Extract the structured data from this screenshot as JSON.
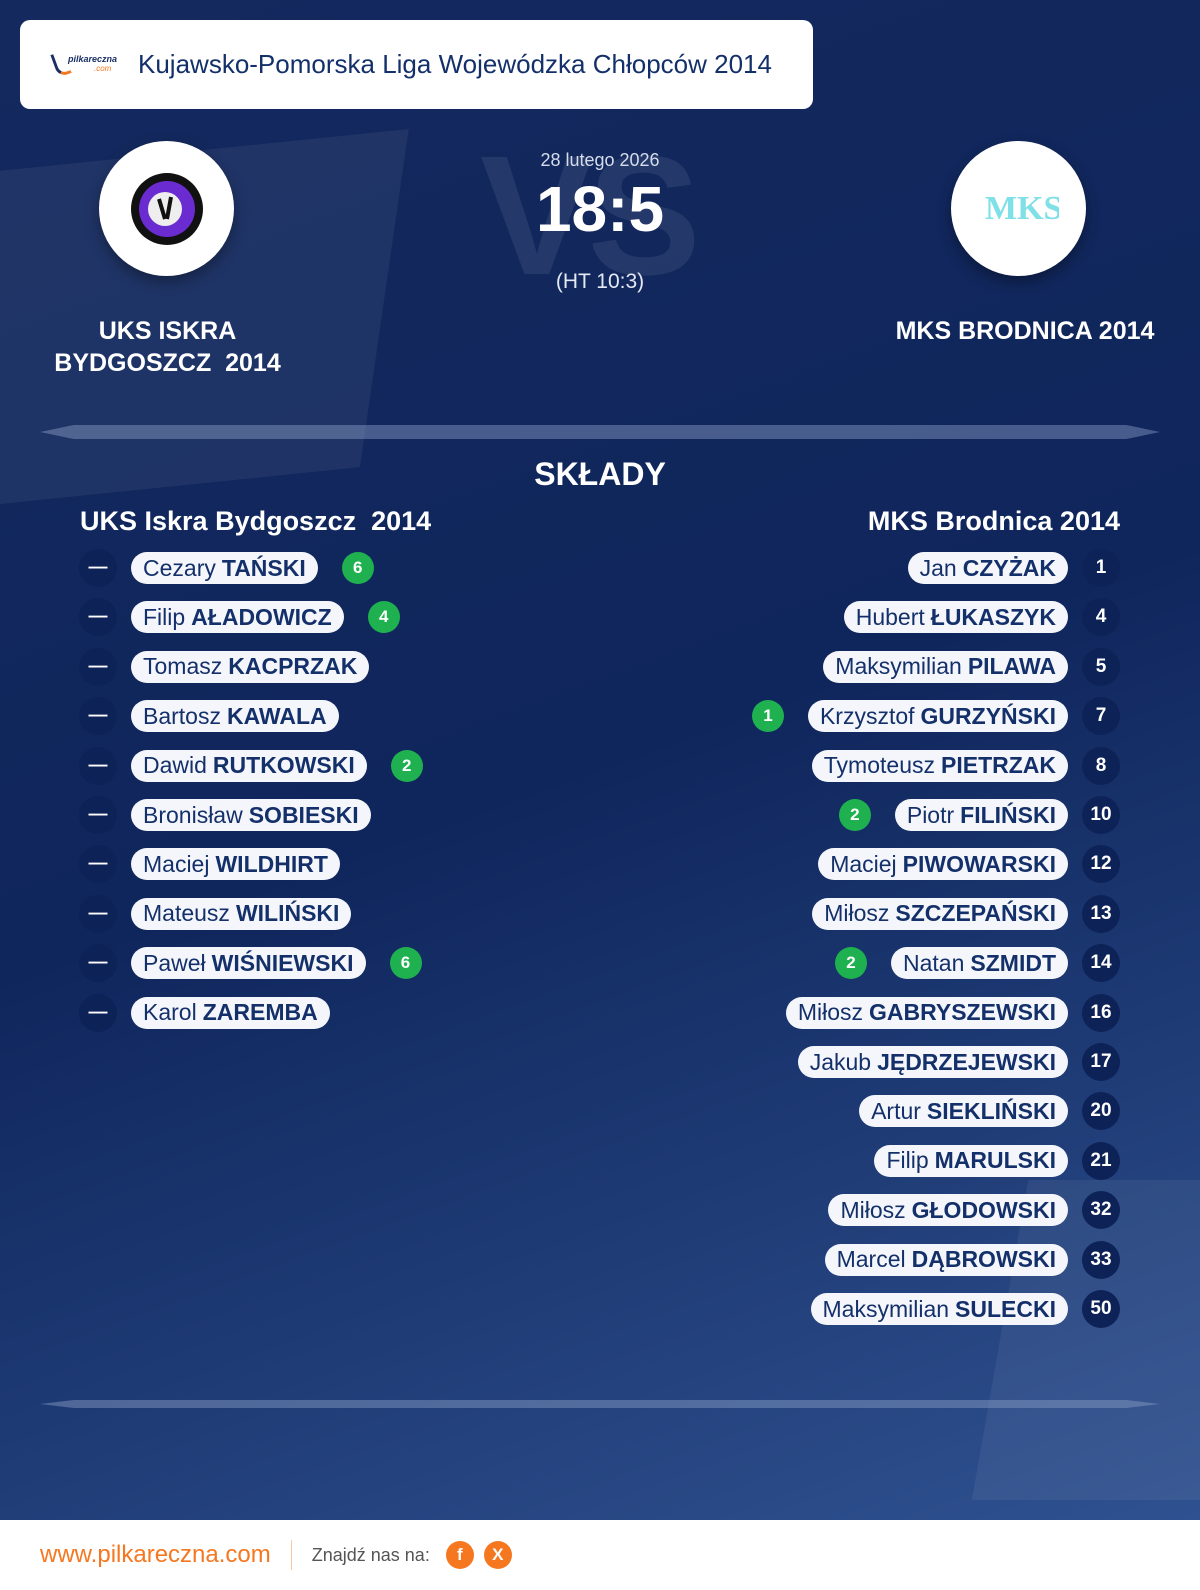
{
  "header": {
    "league": "Kujawsko-Pomorska Liga Wojewódzka Chłopców 2014",
    "logo_text": "pilkareczna",
    "logo_domain": ".com"
  },
  "match": {
    "date": "28 lutego 2026",
    "score": "18:5",
    "halftime": "(HT 10:3)",
    "vs": "VS"
  },
  "home": {
    "name_line1": "UKS ISKRA",
    "name_line2": "BYDGOSZCZ  2014",
    "lineup_title": "UKS Iskra Bydgoszcz  2014",
    "crest_colors": [
      "#6a2bd0",
      "#111111"
    ]
  },
  "away": {
    "name": "MKS BRODNICA 2014",
    "lineup_title": "MKS Brodnica 2014",
    "crest_color": "#7fe0e8"
  },
  "section_title": "SKŁADY",
  "home_players": [
    {
      "number": "—",
      "first": "Cezary",
      "last": "TAŃSKI",
      "goals": "6"
    },
    {
      "number": "—",
      "first": "Filip",
      "last": "AŁADOWICZ",
      "goals": "4"
    },
    {
      "number": "—",
      "first": "Tomasz",
      "last": "KACPRZAK",
      "goals": ""
    },
    {
      "number": "—",
      "first": "Bartosz",
      "last": "KAWALA",
      "goals": ""
    },
    {
      "number": "—",
      "first": "Dawid",
      "last": "RUTKOWSKI",
      "goals": "2"
    },
    {
      "number": "—",
      "first": "Bronisław",
      "last": "SOBIESKI",
      "goals": ""
    },
    {
      "number": "—",
      "first": "Maciej",
      "last": "WILDHIRT",
      "goals": ""
    },
    {
      "number": "—",
      "first": "Mateusz",
      "last": "WILIŃSKI",
      "goals": ""
    },
    {
      "number": "—",
      "first": "Paweł",
      "last": "WIŚNIEWSKI",
      "goals": "6"
    },
    {
      "number": "—",
      "first": "Karol",
      "last": "ZAREMBA",
      "goals": ""
    }
  ],
  "away_players": [
    {
      "number": "1",
      "first": "Jan",
      "last": "CZYŻAK",
      "goals": ""
    },
    {
      "number": "4",
      "first": "Hubert",
      "last": "ŁUKASZYK",
      "goals": ""
    },
    {
      "number": "5",
      "first": "Maksymilian",
      "last": "PILAWA",
      "goals": ""
    },
    {
      "number": "7",
      "first": "Krzysztof",
      "last": "GURZYŃSKI",
      "goals": "1"
    },
    {
      "number": "8",
      "first": "Tymoteusz",
      "last": "PIETRZAK",
      "goals": ""
    },
    {
      "number": "10",
      "first": "Piotr",
      "last": "FILIŃSKI",
      "goals": "2"
    },
    {
      "number": "12",
      "first": "Maciej",
      "last": "PIWOWARSKI",
      "goals": ""
    },
    {
      "number": "13",
      "first": "Miłosz",
      "last": "SZCZEPAŃSKI",
      "goals": ""
    },
    {
      "number": "14",
      "first": "Natan",
      "last": "SZMIDT",
      "goals": "2"
    },
    {
      "number": "16",
      "first": "Miłosz",
      "last": "GABRYSZEWSKI",
      "goals": ""
    },
    {
      "number": "17",
      "first": "Jakub",
      "last": "JĘDRZEJEWSKI",
      "goals": ""
    },
    {
      "number": "20",
      "first": "Artur",
      "last": "SIEKLIŃSKI",
      "goals": ""
    },
    {
      "number": "21",
      "first": "Filip",
      "last": "MARULSKI",
      "goals": ""
    },
    {
      "number": "32",
      "first": "Miłosz",
      "last": "GŁODOWSKI",
      "goals": ""
    },
    {
      "number": "33",
      "first": "Marcel",
      "last": "DĄBROWSKI",
      "goals": ""
    },
    {
      "number": "50",
      "first": "Maksymilian",
      "last": "SULECKI",
      "goals": ""
    }
  ],
  "footer": {
    "site": "www.pilkareczna.com",
    "find_us": "Znajdź nas na:",
    "social": [
      {
        "icon": "facebook-icon",
        "label": "f"
      },
      {
        "icon": "x-icon",
        "label": "X"
      }
    ]
  },
  "colors": {
    "goal": "#1fb14f",
    "accent": "#f57820",
    "navy": "#0d2256"
  }
}
